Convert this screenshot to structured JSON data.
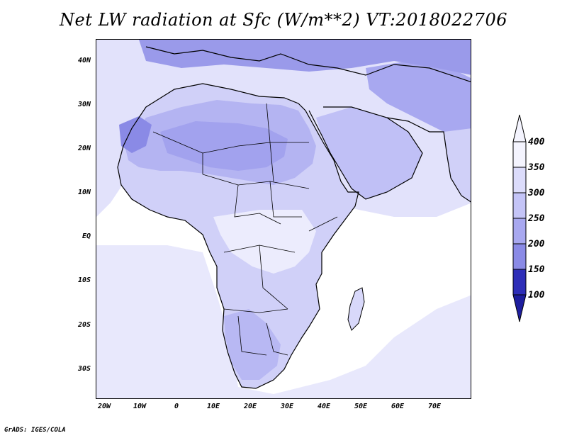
{
  "title": "Net LW radiation at Sfc (W/m**2) VT:2018022706",
  "footer": "GrADS: IGES/COLA",
  "lat_labels": [
    "40N",
    "30N",
    "20N",
    "10N",
    "EQ",
    "10S",
    "20S",
    "30S"
  ],
  "lon_labels": [
    "20W",
    "10W",
    "0",
    "10E",
    "20E",
    "30E",
    "40E",
    "50E",
    "60E",
    "70E"
  ],
  "colorbar": {
    "levels": [
      "400",
      "350",
      "300",
      "250",
      "200",
      "150",
      "100"
    ],
    "colors": [
      "#f4f4fe",
      "#dcdcfb",
      "#c4c4f7",
      "#a8a8f0",
      "#8a8ae6",
      "#5a5ad6",
      "#2e2eb8",
      "#1e1e9e"
    ]
  },
  "colors": {
    "ocean": "#ffffff",
    "land_light": "#dcdcfb",
    "land_mid": "#c4c4f7",
    "land_dark": "#a8a8f0",
    "land_darker": "#8a8ae6"
  }
}
